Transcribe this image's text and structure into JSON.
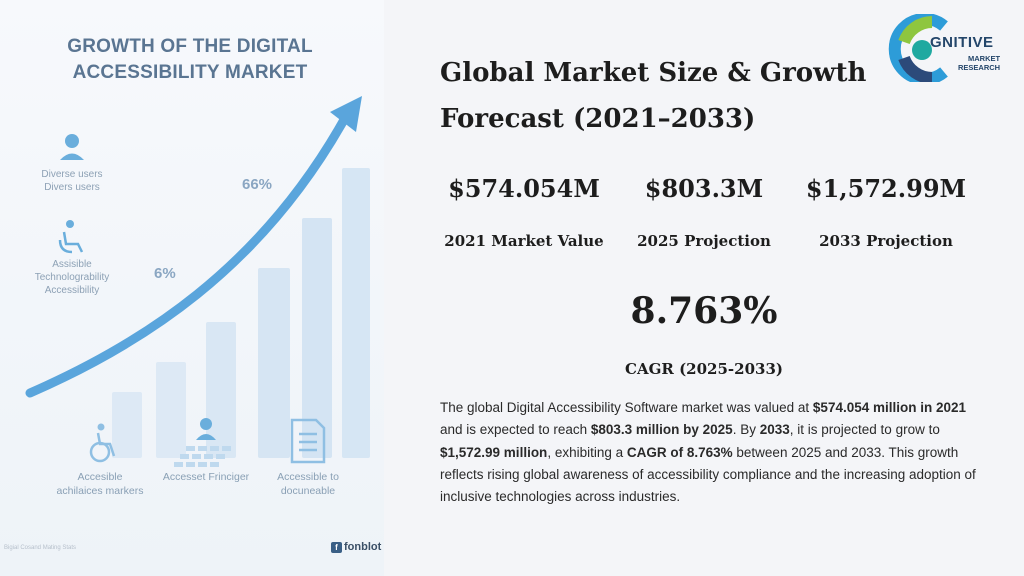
{
  "infographic": {
    "title": "GROWTH OF THE DIGITAL ACCESSIBILITY MARKET",
    "pct_high": "66%",
    "pct_low": "6%",
    "side_items": [
      {
        "label": "Diverse users\nDivers users",
        "icon": "user-icon"
      },
      {
        "label": "Assisible\nTechnologrability\nAccessibility",
        "icon": "wheelchair-user-icon"
      }
    ],
    "bottom_items": [
      {
        "label": "Accesible\nachilaices markers",
        "icon": "wheelchair-icon"
      },
      {
        "label": "Accesset Frinciger",
        "icon": "user-grid-icon"
      },
      {
        "label": "Accessible to\ndocuneable",
        "icon": "document-icon"
      }
    ],
    "footer_left": "Bigial Cosand Mating Stats",
    "footer_brand": "fonblot",
    "footer_brand_letter": "f",
    "bar_color": "#d6e6f4",
    "arrow_color": "#5aa5dc"
  },
  "logo": {
    "word": "GNITIVE",
    "sub_line1": "MARKET",
    "sub_line2": "RESEARCH",
    "colors": [
      "#2d9cd8",
      "#2c4a7a",
      "#8ec63f",
      "#1fa9a0"
    ]
  },
  "header": {
    "title": "Global Market Size & Growth Forecast (2021–2033)"
  },
  "stats": [
    {
      "value": "$574.054M",
      "label": "2021 Market Value"
    },
    {
      "value": "$803.3M",
      "label": "2025 Projection"
    },
    {
      "value": "$1,572.99M",
      "label": "2033 Projection"
    }
  ],
  "cagr": {
    "value": "8.763%",
    "label": "CAGR (2025-2033)"
  },
  "summary": {
    "p1": "The global Digital Accessibility Software market was valued at ",
    "b1": "$574.054 million in 2021",
    "p2": " and is expected to reach ",
    "b2": "$803.3 million by 2025",
    "p3": ". By ",
    "b3": "2033",
    "p4": ", it is projected to grow to ",
    "b4": "$1,572.99 million",
    "p5": ", exhibiting a ",
    "b5": "CAGR of 8.763%",
    "p6": " between 2025 and 2033. This growth reflects rising global awareness of accessibility compliance and the increasing adoption of inclusive technologies across industries."
  }
}
